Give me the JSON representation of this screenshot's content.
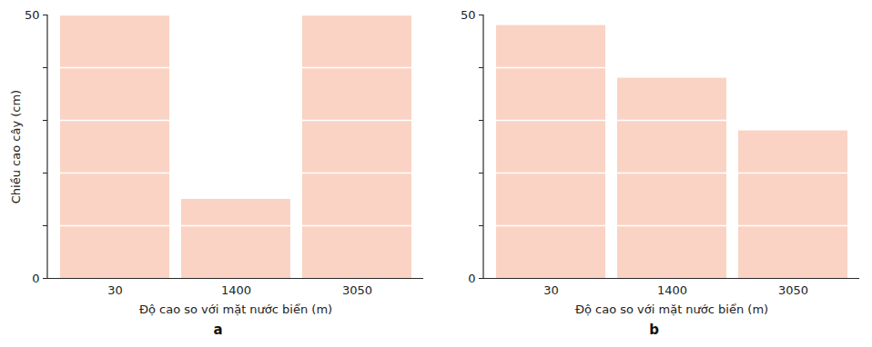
{
  "chart_data": [
    {
      "type": "bar",
      "title": "a",
      "categories": [
        "30",
        "1400",
        "3050"
      ],
      "values": [
        50,
        15,
        50
      ],
      "color": "#fad3c4",
      "xlabel": "Độ cao so với mặt nước biển (m)",
      "ylabel": "Chiều cao cây (cm)",
      "ylim": [
        0,
        50
      ],
      "yticks": [
        0,
        {
          "value": 10,
          "label": null
        },
        {
          "value": 20,
          "label": null
        },
        {
          "value": 30,
          "label": null
        },
        {
          "value": 40,
          "label": null
        },
        50
      ],
      "grid": true
    },
    {
      "type": "bar",
      "title": "b",
      "categories": [
        "30",
        "1400",
        "3050"
      ],
      "values": [
        48,
        38,
        28
      ],
      "color": "#fad3c4",
      "xlabel": "Độ cao so với mặt nước biển (m)",
      "ylim": [
        0,
        50
      ],
      "yticks": [
        0,
        {
          "value": 10,
          "label": null
        },
        {
          "value": 20,
          "label": null
        },
        {
          "value": 30,
          "label": null
        },
        {
          "value": 40,
          "label": null
        },
        50
      ],
      "grid": true
    }
  ]
}
